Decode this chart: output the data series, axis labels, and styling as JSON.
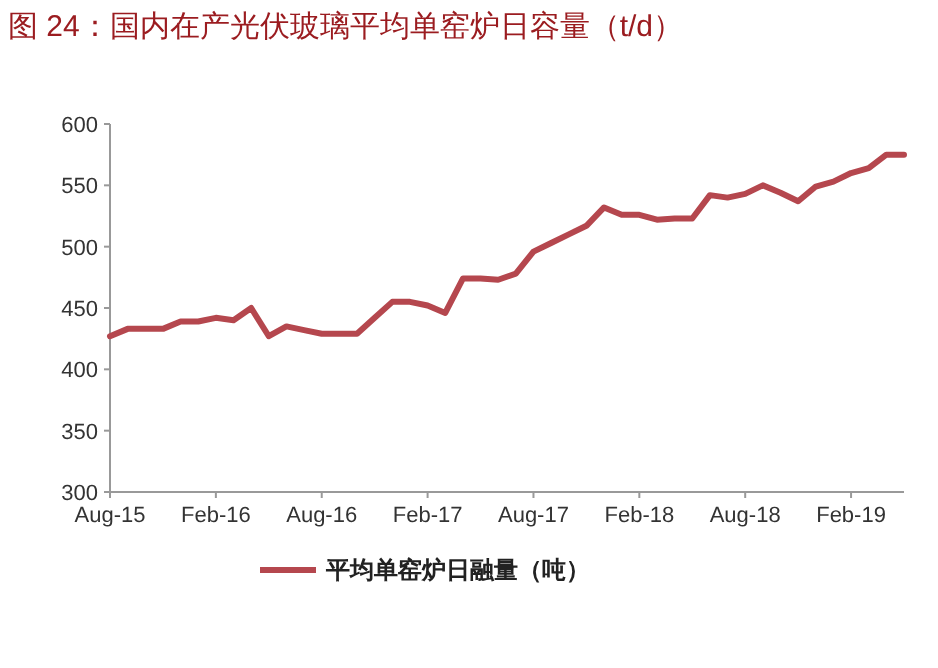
{
  "chart_data": {
    "type": "line",
    "title": "图 24：国内在产光伏玻璃平均单窑炉日容量（t/d）",
    "x": [
      "2015-08",
      "2015-09",
      "2015-10",
      "2015-11",
      "2015-12",
      "2016-01",
      "2016-02",
      "2016-03",
      "2016-04",
      "2016-05",
      "2016-06",
      "2016-07",
      "2016-08",
      "2016-09",
      "2016-10",
      "2016-11",
      "2016-12",
      "2017-01",
      "2017-02",
      "2017-03",
      "2017-04",
      "2017-05",
      "2017-06",
      "2017-07",
      "2017-08",
      "2017-09",
      "2017-10",
      "2017-11",
      "2017-12",
      "2018-01",
      "2018-02",
      "2018-03",
      "2018-04",
      "2018-05",
      "2018-06",
      "2018-07",
      "2018-08",
      "2018-09",
      "2018-10",
      "2018-11",
      "2018-12",
      "2019-01",
      "2019-02",
      "2019-03",
      "2019-04",
      "2019-05"
    ],
    "series": [
      {
        "name": "平均单窑炉日融量（吨）",
        "color": "#b5474e",
        "values": [
          427,
          433,
          433,
          433,
          439,
          439,
          442,
          440,
          450,
          427,
          435,
          432,
          429,
          429,
          429,
          442,
          455,
          455,
          452,
          446,
          474,
          474,
          473,
          478,
          496,
          503,
          510,
          517,
          532,
          526,
          526,
          522,
          523,
          523,
          542,
          540,
          543,
          550,
          544,
          537,
          549,
          553,
          560,
          564,
          575,
          575
        ]
      }
    ],
    "xlim": [
      "2015-08",
      "2019-05"
    ],
    "xticks": [
      {
        "value": "2015-08",
        "label": "Aug-15"
      },
      {
        "value": "2016-02",
        "label": "Feb-16"
      },
      {
        "value": "2016-08",
        "label": "Aug-16"
      },
      {
        "value": "2017-02",
        "label": "Feb-17"
      },
      {
        "value": "2017-08",
        "label": "Aug-17"
      },
      {
        "value": "2018-02",
        "label": "Feb-18"
      },
      {
        "value": "2018-08",
        "label": "Aug-18"
      },
      {
        "value": "2019-02",
        "label": "Feb-19"
      }
    ],
    "ylim": [
      300,
      600
    ],
    "yticks": [
      300,
      350,
      400,
      450,
      500,
      550,
      600
    ],
    "grid": false,
    "legend": "bottom",
    "marker": "none",
    "line_style": "solid"
  }
}
